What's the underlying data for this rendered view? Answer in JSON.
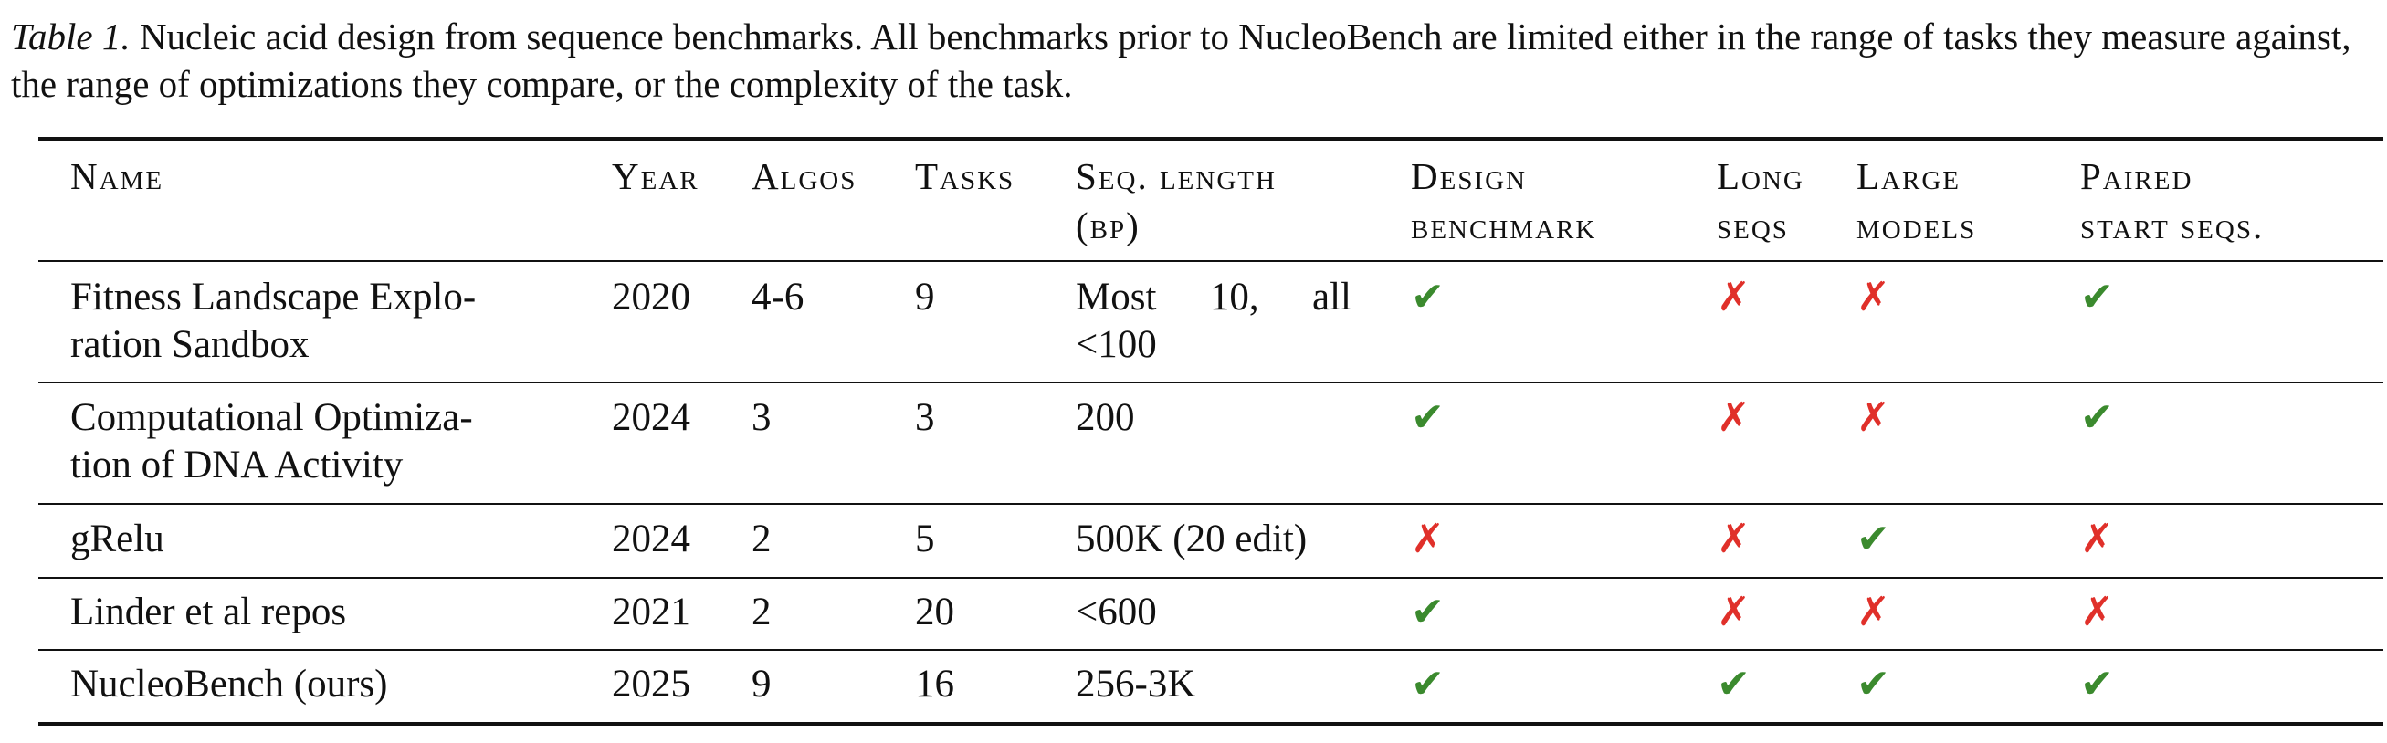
{
  "caption": {
    "label": "Table 1.",
    "text": "Nucleic acid design from sequence benchmarks. All benchmarks prior to NucleoBench are limited either in the range of tasks they measure against, the range of optimizations they compare, or the complexity of the task."
  },
  "table": {
    "headers": {
      "name": "Name",
      "year": "Year",
      "algos": "Algos",
      "tasks": "Tasks",
      "seq_length_line1": "Seq. length",
      "seq_length_line2": "(bp)",
      "design_line1": "Design",
      "design_line2": "benchmark",
      "long_line1": "Long",
      "long_line2": "seqs",
      "large_line1": "Large",
      "large_line2": "models",
      "paired_line1": "Paired",
      "paired_line2": "start seqs."
    },
    "marks": {
      "yes": "✔",
      "no": "✗"
    },
    "rows": [
      {
        "name": "Fitness Landscape Exploration Sandbox",
        "name_line1": "Fitness Landscape Explo-",
        "name_line2": "ration Sandbox",
        "year": "2020",
        "algos": "4-6",
        "tasks": "9",
        "seq_line1": "Most 10, all",
        "seq_line2": "<100",
        "design": "yes",
        "long": "no",
        "large": "no",
        "paired": "yes"
      },
      {
        "name": "Computational Optimization of DNA Activity",
        "name_line1": "Computational Optimiza-",
        "name_line2": "tion of DNA Activity",
        "year": "2024",
        "algos": "3",
        "tasks": "3",
        "seq_line1": "200",
        "seq_line2": "",
        "design": "yes",
        "long": "no",
        "large": "no",
        "paired": "yes"
      },
      {
        "name_line1": "gRelu",
        "year": "2024",
        "algos": "2",
        "tasks": "5",
        "seq_line1": "500K (20 edit)",
        "design": "no",
        "long": "no",
        "large": "yes",
        "paired": "no"
      },
      {
        "name_line1": "Linder et al repos",
        "year": "2021",
        "algos": "2",
        "tasks": "20",
        "seq_line1": "<600",
        "design": "yes",
        "long": "no",
        "large": "no",
        "paired": "no"
      },
      {
        "name_line1": "NucleoBench (ours)",
        "year": "2025",
        "algos": "9",
        "tasks": "16",
        "seq_line1": "256-3K",
        "design": "yes",
        "long": "yes",
        "large": "yes",
        "paired": "yes"
      }
    ]
  }
}
